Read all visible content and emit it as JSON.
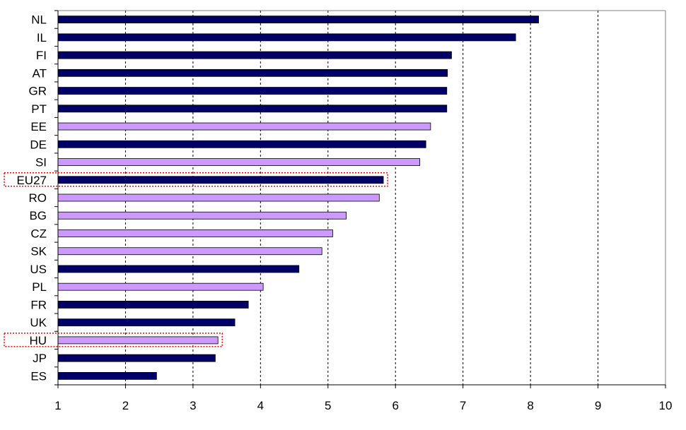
{
  "chart_data": {
    "type": "bar",
    "orientation": "horizontal",
    "categories": [
      "NL",
      "IL",
      "FI",
      "AT",
      "GR",
      "PT",
      "EE",
      "DE",
      "SI",
      "EU27",
      "RO",
      "BG",
      "CZ",
      "SK",
      "US",
      "PL",
      "FR",
      "UK",
      "HU",
      "JP",
      "ES"
    ],
    "values": [
      8.12,
      7.78,
      6.83,
      6.77,
      6.76,
      6.76,
      6.52,
      6.45,
      6.36,
      5.82,
      5.76,
      5.27,
      5.07,
      4.91,
      4.57,
      4.04,
      3.82,
      3.62,
      3.37,
      3.33,
      2.46
    ],
    "group": [
      "dark",
      "dark",
      "dark",
      "dark",
      "dark",
      "dark",
      "light",
      "dark",
      "light",
      "dark",
      "light",
      "light",
      "light",
      "light",
      "dark",
      "light",
      "dark",
      "dark",
      "light",
      "dark",
      "dark"
    ],
    "xlim": [
      1,
      10
    ],
    "xticks": [
      "1",
      "2",
      "3",
      "4",
      "5",
      "6",
      "7",
      "8",
      "9",
      "10"
    ],
    "grid": "vertical dashed",
    "highlighted": [
      "EU27",
      "HU"
    ],
    "colors": {
      "dark": "#000066",
      "light": "#cc99ff",
      "highlight_box": "#ff0000",
      "grid": "#000000",
      "axis": "#808080"
    },
    "title": "",
    "xlabel": "",
    "ylabel": ""
  }
}
